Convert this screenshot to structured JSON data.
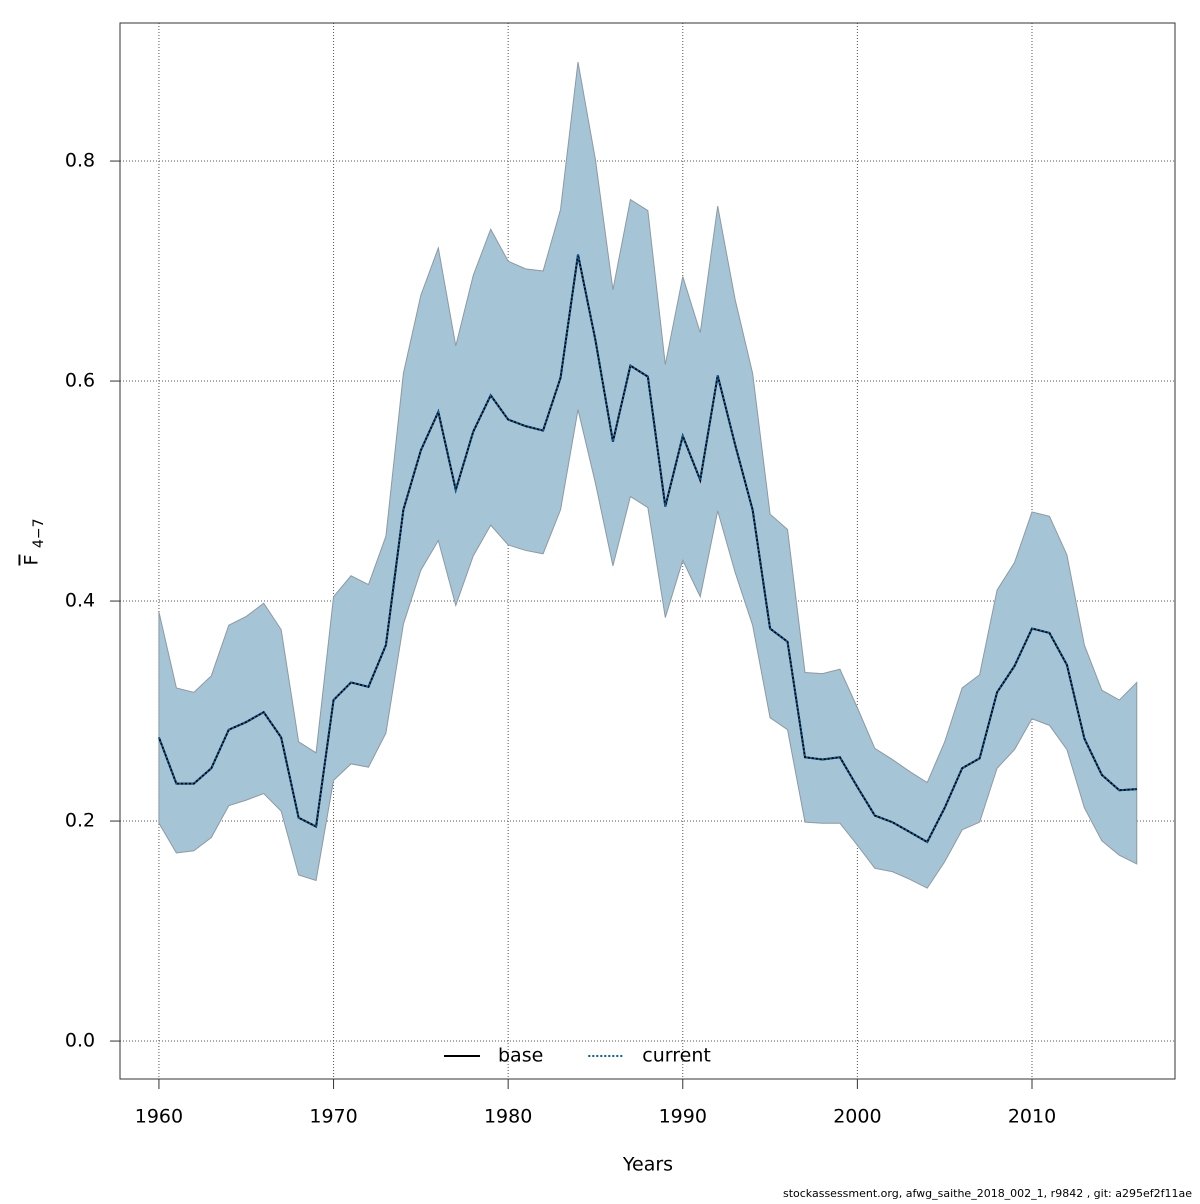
{
  "chart_data": {
    "type": "line",
    "xlabel": "Years",
    "ylabel": {
      "text": "F",
      "subscript": "4−7"
    },
    "footer": "stockassessment.org, afwg_saithe_2018_002_1, r9842 , git: a295ef2f11ae",
    "x": [
      1960,
      1961,
      1962,
      1963,
      1964,
      1965,
      1966,
      1967,
      1968,
      1969,
      1970,
      1971,
      1972,
      1973,
      1974,
      1975,
      1976,
      1977,
      1978,
      1979,
      1980,
      1981,
      1982,
      1983,
      1984,
      1985,
      1986,
      1987,
      1988,
      1989,
      1990,
      1991,
      1992,
      1993,
      1994,
      1995,
      1996,
      1997,
      1998,
      1999,
      2000,
      2001,
      2002,
      2003,
      2004,
      2005,
      2006,
      2007,
      2008,
      2009,
      2010,
      2011,
      2012,
      2013,
      2014,
      2015,
      2016
    ],
    "series": [
      {
        "name": "base",
        "color": "#000000",
        "dash": false,
        "values": [
          0.276,
          0.234,
          0.234,
          0.248,
          0.283,
          0.29,
          0.299,
          0.276,
          0.203,
          0.195,
          0.31,
          0.326,
          0.322,
          0.36,
          0.483,
          0.537,
          0.572,
          0.501,
          0.554,
          0.587,
          0.565,
          0.559,
          0.555,
          0.603,
          0.715,
          0.637,
          0.545,
          0.614,
          0.604,
          0.486,
          0.55,
          0.51,
          0.605,
          0.542,
          0.483,
          0.375,
          0.363,
          0.258,
          0.256,
          0.258,
          0.231,
          0.205,
          0.199,
          0.19,
          0.181,
          0.212,
          0.248,
          0.257,
          0.317,
          0.341,
          0.375,
          0.371,
          0.342,
          0.275,
          0.242,
          0.228,
          0.229
        ]
      },
      {
        "name": "current",
        "color": "#0b5fa0",
        "dash": true,
        "values": [
          0.276,
          0.234,
          0.234,
          0.248,
          0.283,
          0.29,
          0.299,
          0.276,
          0.203,
          0.195,
          0.31,
          0.326,
          0.322,
          0.36,
          0.483,
          0.537,
          0.572,
          0.501,
          0.554,
          0.587,
          0.565,
          0.559,
          0.555,
          0.603,
          0.715,
          0.637,
          0.545,
          0.614,
          0.604,
          0.486,
          0.55,
          0.51,
          0.605,
          0.542,
          0.483,
          0.375,
          0.363,
          0.258,
          0.256,
          0.258,
          0.231,
          0.205,
          0.199,
          0.19,
          0.181,
          0.212,
          0.248,
          0.257,
          0.317,
          0.341,
          0.375,
          0.371,
          0.342,
          0.275,
          0.242,
          0.228,
          0.229
        ]
      }
    ],
    "band": {
      "color": "#a5c4d6",
      "upper": [
        0.39,
        0.321,
        0.317,
        0.332,
        0.378,
        0.386,
        0.398,
        0.374,
        0.272,
        0.262,
        0.404,
        0.423,
        0.415,
        0.459,
        0.607,
        0.678,
        0.721,
        0.632,
        0.696,
        0.738,
        0.709,
        0.702,
        0.7,
        0.756,
        0.89,
        0.801,
        0.683,
        0.765,
        0.755,
        0.615,
        0.695,
        0.644,
        0.759,
        0.674,
        0.607,
        0.479,
        0.465,
        0.335,
        0.334,
        0.338,
        0.303,
        0.266,
        0.256,
        0.245,
        0.235,
        0.272,
        0.321,
        0.333,
        0.41,
        0.435,
        0.481,
        0.477,
        0.442,
        0.36,
        0.319,
        0.31,
        0.326
      ],
      "lower": [
        0.198,
        0.171,
        0.173,
        0.185,
        0.214,
        0.219,
        0.225,
        0.209,
        0.151,
        0.146,
        0.237,
        0.252,
        0.249,
        0.28,
        0.379,
        0.428,
        0.455,
        0.396,
        0.441,
        0.469,
        0.451,
        0.446,
        0.443,
        0.483,
        0.574,
        0.507,
        0.432,
        0.495,
        0.485,
        0.385,
        0.437,
        0.404,
        0.482,
        0.426,
        0.378,
        0.294,
        0.283,
        0.199,
        0.198,
        0.198,
        0.178,
        0.157,
        0.154,
        0.147,
        0.139,
        0.163,
        0.192,
        0.199,
        0.248,
        0.265,
        0.293,
        0.287,
        0.265,
        0.212,
        0.182,
        0.169,
        0.161
      ]
    },
    "xlim": [
      1957.77,
      2018.19
    ],
    "ylim": [
      -0.0345,
      0.9255
    ],
    "xticks": [
      1960,
      1970,
      1980,
      1990,
      2000,
      2010
    ],
    "yticks": [
      {
        "value": 0,
        "label": "0.0"
      },
      0.2,
      0.4,
      0.6,
      0.8
    ],
    "grid": true,
    "legend": "bottom"
  }
}
